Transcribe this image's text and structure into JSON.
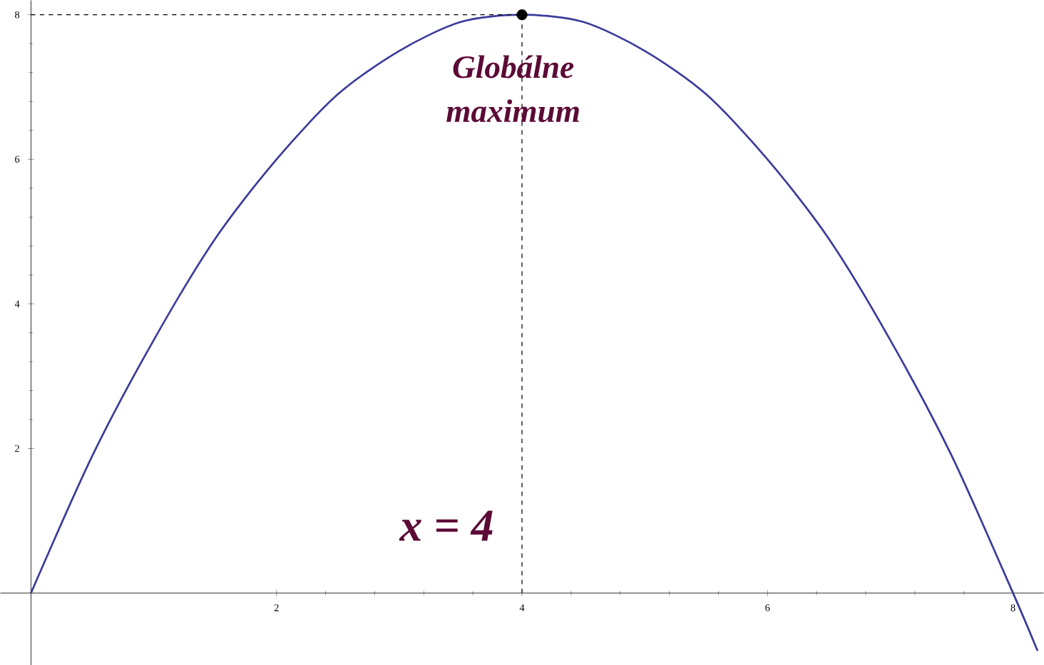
{
  "chart_data": {
    "type": "line",
    "xlim": [
      -0.25,
      8.25
    ],
    "ylim": [
      -1,
      8.2
    ],
    "xticks": [
      2,
      4,
      6,
      8
    ],
    "yticks": [
      2,
      4,
      6,
      8
    ],
    "grid": false,
    "series": [
      {
        "color": "#3b3b9b",
        "marker": "none",
        "x": [
          0,
          0.5,
          1,
          1.5,
          2,
          2.5,
          3,
          3.5,
          4,
          4.5,
          5,
          5.5,
          6,
          6.5,
          7,
          7.5,
          8,
          8.2
        ],
        "values": [
          0,
          1.9,
          3.5,
          4.9,
          6,
          6.9,
          7.5,
          7.9,
          8,
          7.9,
          7.5,
          6.9,
          6,
          4.9,
          3.5,
          1.9,
          0,
          -0.8
        ]
      },
      {
        "type": "scatter",
        "color": "#000000",
        "marker": "circle",
        "x": [
          4
        ],
        "values": [
          8
        ]
      }
    ],
    "ref_lines": [
      {
        "axis": "y",
        "value": 8,
        "line_style": "dashed",
        "color": "#000000"
      },
      {
        "axis": "x",
        "value": 4,
        "line_style": "dashed",
        "color": "#000000"
      }
    ],
    "annotations": [
      {
        "text": "Globálne maximum",
        "x": 4,
        "y": 8
      },
      "x = 4"
    ]
  }
}
